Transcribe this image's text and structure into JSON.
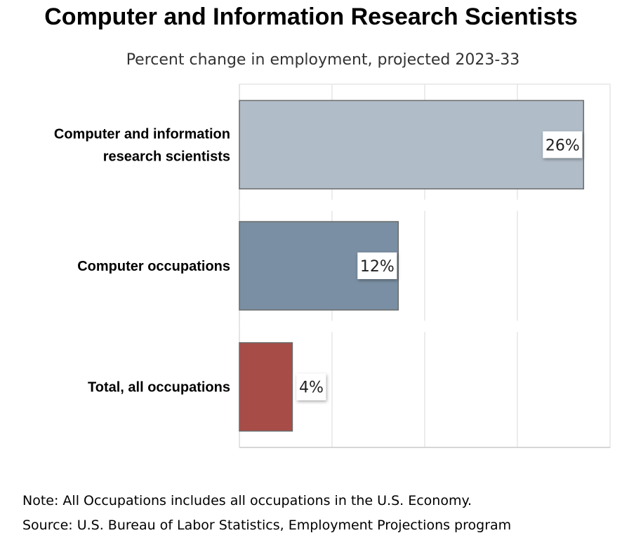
{
  "chart_title": "Computer and Information Research Scientists",
  "chart_subtitle": "Percent change in employment, projected 2023-33",
  "note": "Note: All Occupations includes all occupations in the U.S. Economy.",
  "source": "Source: U.S. Bureau of Labor Statistics, Employment Projections program",
  "chart_data": {
    "type": "bar",
    "orientation": "horizontal",
    "title": "Computer and Information Research Scientists",
    "subtitle": "Percent change in employment, projected 2023-33",
    "xlabel": "",
    "ylabel": "",
    "xlim": [
      0,
      28
    ],
    "grid": true,
    "legend": "none",
    "categories": [
      [
        "Computer and information",
        "research scientists"
      ],
      [
        "Computer occupations"
      ],
      [
        "Total, all occupations"
      ]
    ],
    "values": [
      26,
      12,
      4
    ],
    "value_labels": [
      "26%",
      "12%",
      "4%"
    ],
    "colors": [
      "#b0bcc8",
      "#7a8fa3",
      "#a84c48"
    ]
  }
}
